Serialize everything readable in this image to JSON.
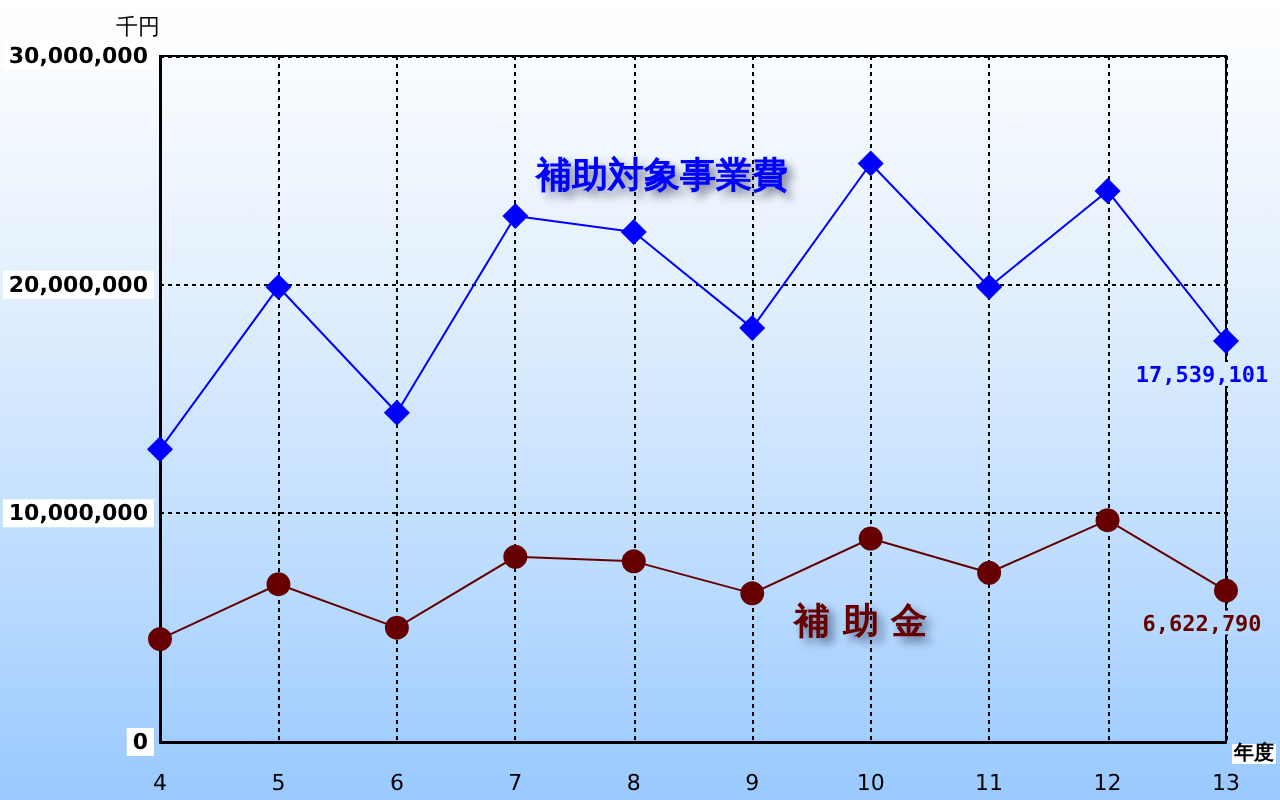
{
  "chart_data": {
    "type": "line",
    "ylabel": "千円",
    "xlabel": "年度",
    "categories": [
      "4",
      "5",
      "6",
      "7",
      "8",
      "9",
      "10",
      "11",
      "12",
      "13"
    ],
    "series": [
      {
        "name": "補助対象事業費",
        "color": "#0000ff",
        "marker": "diamond",
        "values": [
          12800000,
          19900000,
          14400000,
          23000000,
          22300000,
          18100000,
          25300000,
          19900000,
          24100000,
          17539101
        ],
        "value_labels": [
          null,
          null,
          null,
          null,
          null,
          null,
          null,
          null,
          null,
          "17,539,101"
        ]
      },
      {
        "name": "補 助 金",
        "color": "#660000",
        "marker": "circle",
        "values": [
          4500000,
          6900000,
          5000000,
          8100000,
          7900000,
          6500000,
          8900000,
          7400000,
          9700000,
          6622790
        ],
        "value_labels": [
          null,
          null,
          null,
          null,
          null,
          null,
          null,
          null,
          null,
          "6,622,790"
        ]
      }
    ],
    "ylim": [
      0,
      30000000
    ],
    "yticks": [
      {
        "value": 0,
        "label": "0"
      },
      {
        "value": 10000000,
        "label": "10,000,000"
      },
      {
        "value": 20000000,
        "label": "20,000,000"
      },
      {
        "value": 30000000,
        "label": "30,000,000"
      }
    ],
    "grid": true,
    "legend": false,
    "line_style": "solid"
  }
}
